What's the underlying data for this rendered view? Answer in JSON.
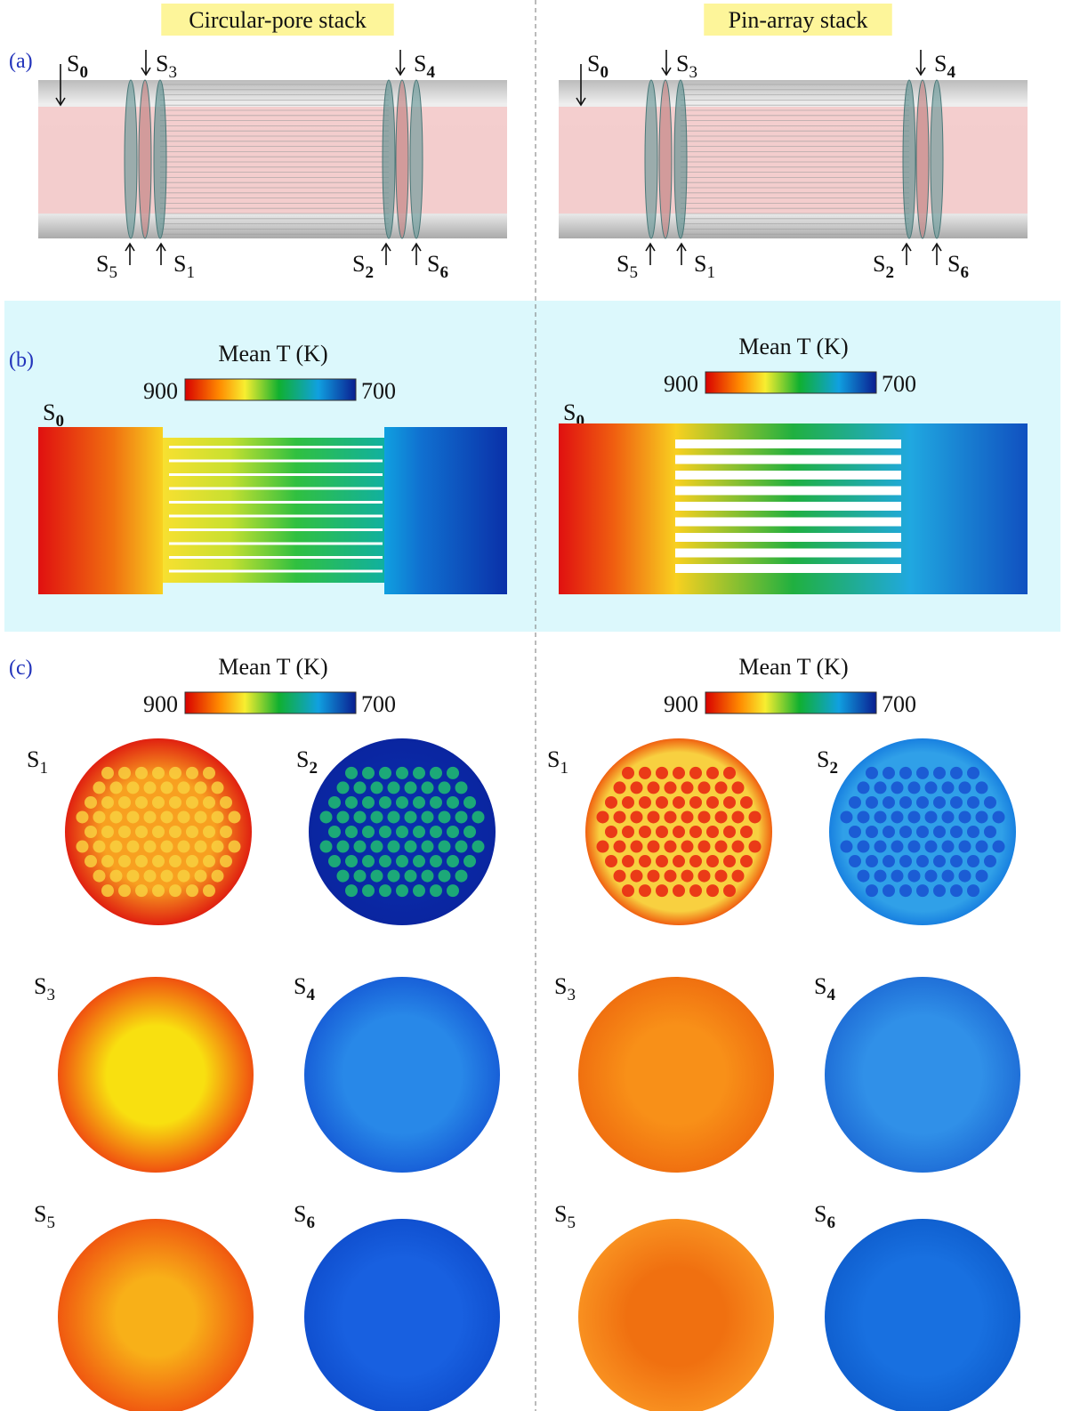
{
  "panel_labels": [
    "(a)",
    "(b)",
    "(c)"
  ],
  "columns": [
    {
      "title": "Circular-pore stack",
      "a": {
        "labels": [
          {
            "s": "S",
            "n": "0"
          },
          {
            "s": "S",
            "n": "3"
          },
          {
            "s": "S",
            "n": "4"
          },
          {
            "s": "S",
            "n": "5"
          },
          {
            "s": "S",
            "n": "1"
          },
          {
            "s": "S",
            "n": "2"
          },
          {
            "s": "S",
            "n": "6"
          }
        ]
      },
      "b": {
        "colorbar": {
          "title": "Mean T (K)",
          "hot": 900,
          "cold": 700
        },
        "label": {
          "s": "S",
          "n": "0"
        }
      },
      "c": {
        "colorbar": {
          "title": "Mean T (K)",
          "hot": 900,
          "cold": 700
        },
        "sections": [
          {
            "s": "S",
            "n": "1"
          },
          {
            "s": "S",
            "n": "2"
          },
          {
            "s": "S",
            "n": "3"
          },
          {
            "s": "S",
            "n": "4"
          },
          {
            "s": "S",
            "n": "5"
          },
          {
            "s": "S",
            "n": "6"
          }
        ]
      }
    },
    {
      "title": "Pin-array stack",
      "a": {
        "labels": [
          {
            "s": "S",
            "n": "0"
          },
          {
            "s": "S",
            "n": "3"
          },
          {
            "s": "S",
            "n": "4"
          },
          {
            "s": "S",
            "n": "5"
          },
          {
            "s": "S",
            "n": "1"
          },
          {
            "s": "S",
            "n": "2"
          },
          {
            "s": "S",
            "n": "6"
          }
        ]
      },
      "b": {
        "colorbar": {
          "title": "Mean T (K)",
          "hot": 900,
          "cold": 700
        },
        "label": {
          "s": "S",
          "n": "0"
        }
      },
      "c": {
        "colorbar": {
          "title": "Mean T (K)",
          "hot": 900,
          "cold": 700
        },
        "sections": [
          {
            "s": "S",
            "n": "1"
          },
          {
            "s": "S",
            "n": "2"
          },
          {
            "s": "S",
            "n": "3"
          },
          {
            "s": "S",
            "n": "4"
          },
          {
            "s": "S",
            "n": "5"
          },
          {
            "s": "S",
            "n": "6"
          }
        ]
      }
    }
  ]
}
